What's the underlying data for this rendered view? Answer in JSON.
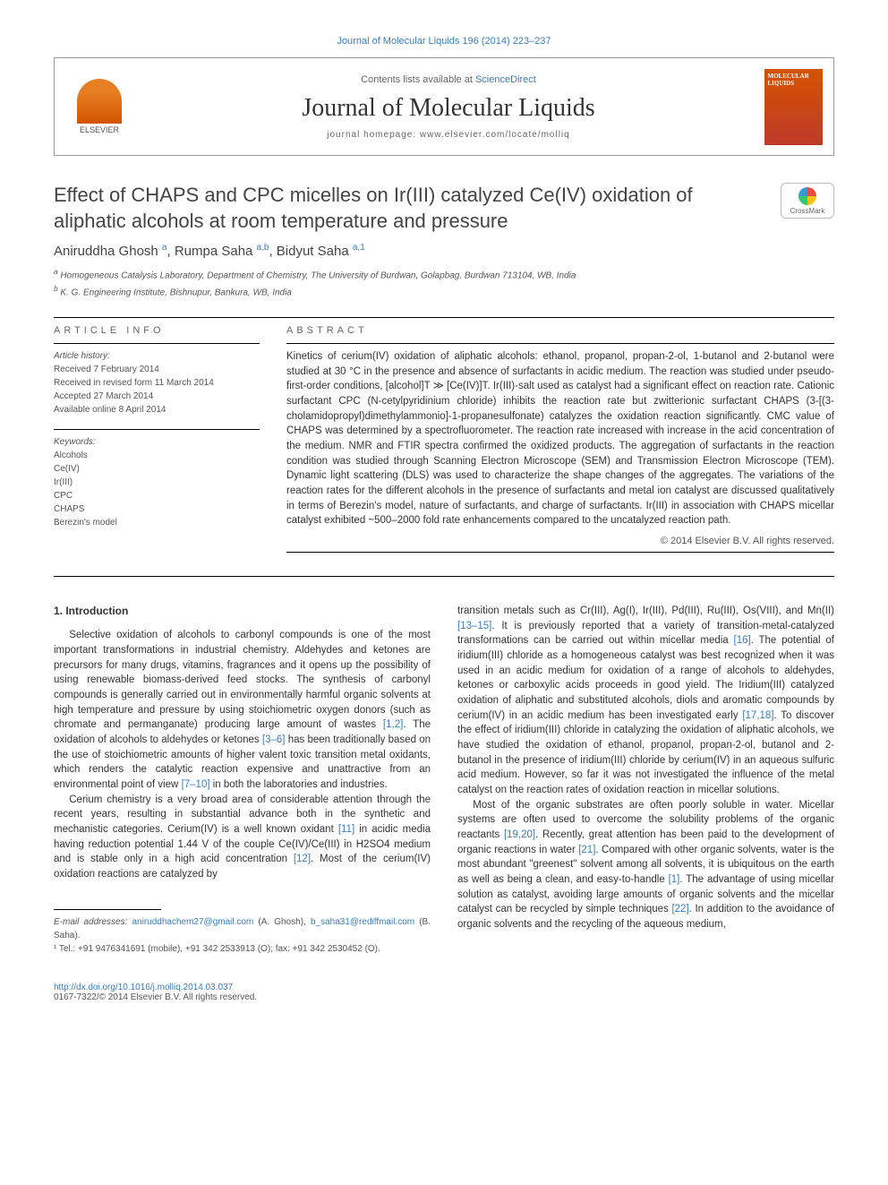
{
  "top_link": "Journal of Molecular Liquids 196 (2014) 223–237",
  "header": {
    "contents_prefix": "Contents lists available at ",
    "sciencedirect": "ScienceDirect",
    "journal_name": "Journal of Molecular Liquids",
    "homepage_label": "journal homepage: www.elsevier.com/locate/molliq",
    "elsevier": "ELSEVIER",
    "cover_line1": "MOLECULAR",
    "cover_line2": "LIQUIDS"
  },
  "crossmark_label": "CrossMark",
  "title": "Effect of CHAPS and CPC micelles on Ir(III) catalyzed Ce(IV) oxidation of aliphatic alcohols at room temperature and pressure",
  "authors_html": "Aniruddha Ghosh <sup>a</sup>, Rumpa Saha <sup>a,b</sup>, Bidyut Saha <sup>a,1</sup>",
  "affiliations": {
    "a": "Homogeneous Catalysis Laboratory, Department of Chemistry, The University of Burdwan, Golapbag, Burdwan 713104, WB, India",
    "b": "K. G. Engineering Institute, Bishnupur, Bankura, WB, India"
  },
  "info": {
    "heading": "ARTICLE INFO",
    "history_label": "Article history:",
    "history": [
      "Received 7 February 2014",
      "Received in revised form 11 March 2014",
      "Accepted 27 March 2014",
      "Available online 8 April 2014"
    ],
    "keywords_label": "Keywords:",
    "keywords": [
      "Alcohols",
      "Ce(IV)",
      "Ir(III)",
      "CPC",
      "CHAPS",
      "Berezin's model"
    ]
  },
  "abstract_heading": "ABSTRACT",
  "abstract": "Kinetics of cerium(IV) oxidation of aliphatic alcohols: ethanol, propanol, propan-2-ol, 1-butanol and 2-butanol were studied at 30 °C in the presence and absence of surfactants in acidic medium. The reaction was studied under pseudo-first-order conditions, [alcohol]T ≫ [Ce(IV)]T. Ir(III)-salt used as catalyst had a significant effect on reaction rate. Cationic surfactant CPC (N-cetylpyridinium chloride) inhibits the reaction rate but zwitterionic surfactant CHAPS (3-[(3-cholamidopropyl)dimethylammonio]-1-propanesulfonate) catalyzes the oxidation reaction significantly. CMC value of CHAPS was determined by a spectrofluorometer. The reaction rate increased with increase in the acid concentration of the medium. NMR and FTIR spectra confirmed the oxidized products. The aggregation of surfactants in the reaction condition was studied through Scanning Electron Microscope (SEM) and Transmission Electron Microscope (TEM). Dynamic light scattering (DLS) was used to characterize the shape changes of the aggregates. The variations of the reaction rates for the different alcohols in the presence of surfactants and metal ion catalyst are discussed qualitatively in terms of Berezin's model, nature of surfactants, and charge of surfactants. Ir(III) in association with CHAPS micellar catalyst exhibited ~500–2000 fold rate enhancements compared to the uncatalyzed reaction path.",
  "copyright": "© 2014 Elsevier B.V. All rights reserved.",
  "body": {
    "section_heading": "1. Introduction",
    "left_p1": "Selective oxidation of alcohols to carbonyl compounds is one of the most important transformations in industrial chemistry. Aldehydes and ketones are precursors for many drugs, vitamins, fragrances and it opens up the possibility of using renewable biomass-derived feed stocks. The synthesis of carbonyl compounds is generally carried out in environmentally harmful organic solvents at high temperature and pressure by using stoichiometric oxygen donors (such as chromate and permanganate) producing large amount of wastes ",
    "ref_1_2": "[1,2]",
    "left_p1b": ". The oxidation of alcohols to aldehydes or ketones ",
    "ref_3_6": "[3–6]",
    "left_p1c": " has been traditionally based on the use of stoichiometric amounts of higher valent toxic transition metal oxidants, which renders the catalytic reaction expensive and unattractive from an environmental point of view ",
    "ref_7_10": "[7–10]",
    "left_p1d": " in both the laboratories and industries.",
    "left_p2": "Cerium chemistry is a very broad area of considerable attention through the recent years, resulting in substantial advance both in the synthetic and mechanistic categories. Cerium(IV) is a well known oxidant ",
    "ref_11": "[11]",
    "left_p2b": " in acidic media having reduction potential 1.44 V of the couple Ce(IV)/Ce(III) in H2SO4 medium and is stable only in a high acid concentration ",
    "ref_12": "[12]",
    "left_p2c": ". Most of the cerium(IV) oxidation reactions are catalyzed by",
    "right_p1": "transition metals such as Cr(III), Ag(I), Ir(III), Pd(III), Ru(III), Os(VIII), and Mn(II) ",
    "ref_13_15": "[13–15]",
    "right_p1b": ". It is previously reported that a variety of transition-metal-catalyzed transformations can be carried out within micellar media ",
    "ref_16": "[16]",
    "right_p1c": ". The potential of iridium(III) chloride as a homogeneous catalyst was best recognized when it was used in an acidic medium for oxidation of a range of alcohols to aldehydes, ketones or carboxylic acids proceeds in good yield. The Iridium(III) catalyzed oxidation of aliphatic and substituted alcohols, diols and aromatic compounds by cerium(IV) in an acidic medium has been investigated early ",
    "ref_17_18": "[17,18]",
    "right_p1d": ". To discover the effect of iridium(III) chloride in catalyzing the oxidation of aliphatic alcohols, we have studied the oxidation of ethanol, propanol, propan-2-ol, butanol and 2-butanol in the presence of iridium(III) chloride by cerium(IV) in an aqueous sulfuric acid medium. However, so far it was not investigated the influence of the metal catalyst on the reaction rates of oxidation reaction in micellar solutions.",
    "right_p2": "Most of the organic substrates are often poorly soluble in water. Micellar systems are often used to overcome the solubility problems of the organic reactants ",
    "ref_19_20": "[19,20]",
    "right_p2b": ". Recently, great attention has been paid to the development of organic reactions in water ",
    "ref_21": "[21]",
    "right_p2c": ". Compared with other organic solvents, water is the most abundant \"greenest\" solvent among all solvents, it is ubiquitous on the earth as well as being a clean, and easy-to-handle ",
    "ref_1": "[1]",
    "right_p2d": ". The advantage of using micellar solution as catalyst, avoiding large amounts of organic solvents and the micellar catalyst can be recycled by simple techniques ",
    "ref_22": "[22]",
    "right_p2e": ". In addition to the avoidance of organic solvents and the recycling of the aqueous medium,"
  },
  "footnotes": {
    "email_label": "E-mail addresses: ",
    "email1": "aniruddhachem27@gmail.com",
    "email1_who": " (A. Ghosh), ",
    "email2": "b_saha31@rediffmail.com",
    "email2_who": " (B. Saha).",
    "tel_label": "¹ Tel.: +91 9476341691 (mobile), +91 342 2533913 (O); fax: +91 342 2530452 (O)."
  },
  "bottom": {
    "doi": "http://dx.doi.org/10.1016/j.molliq.2014.03.037",
    "issn": "0167-7322/© 2014 Elsevier B.V. All rights reserved."
  },
  "colors": {
    "link": "#3b7db5",
    "text": "#333333",
    "muted": "#555555",
    "elsevier_orange": "#e67e22",
    "cover_bg": "#c0392b"
  }
}
